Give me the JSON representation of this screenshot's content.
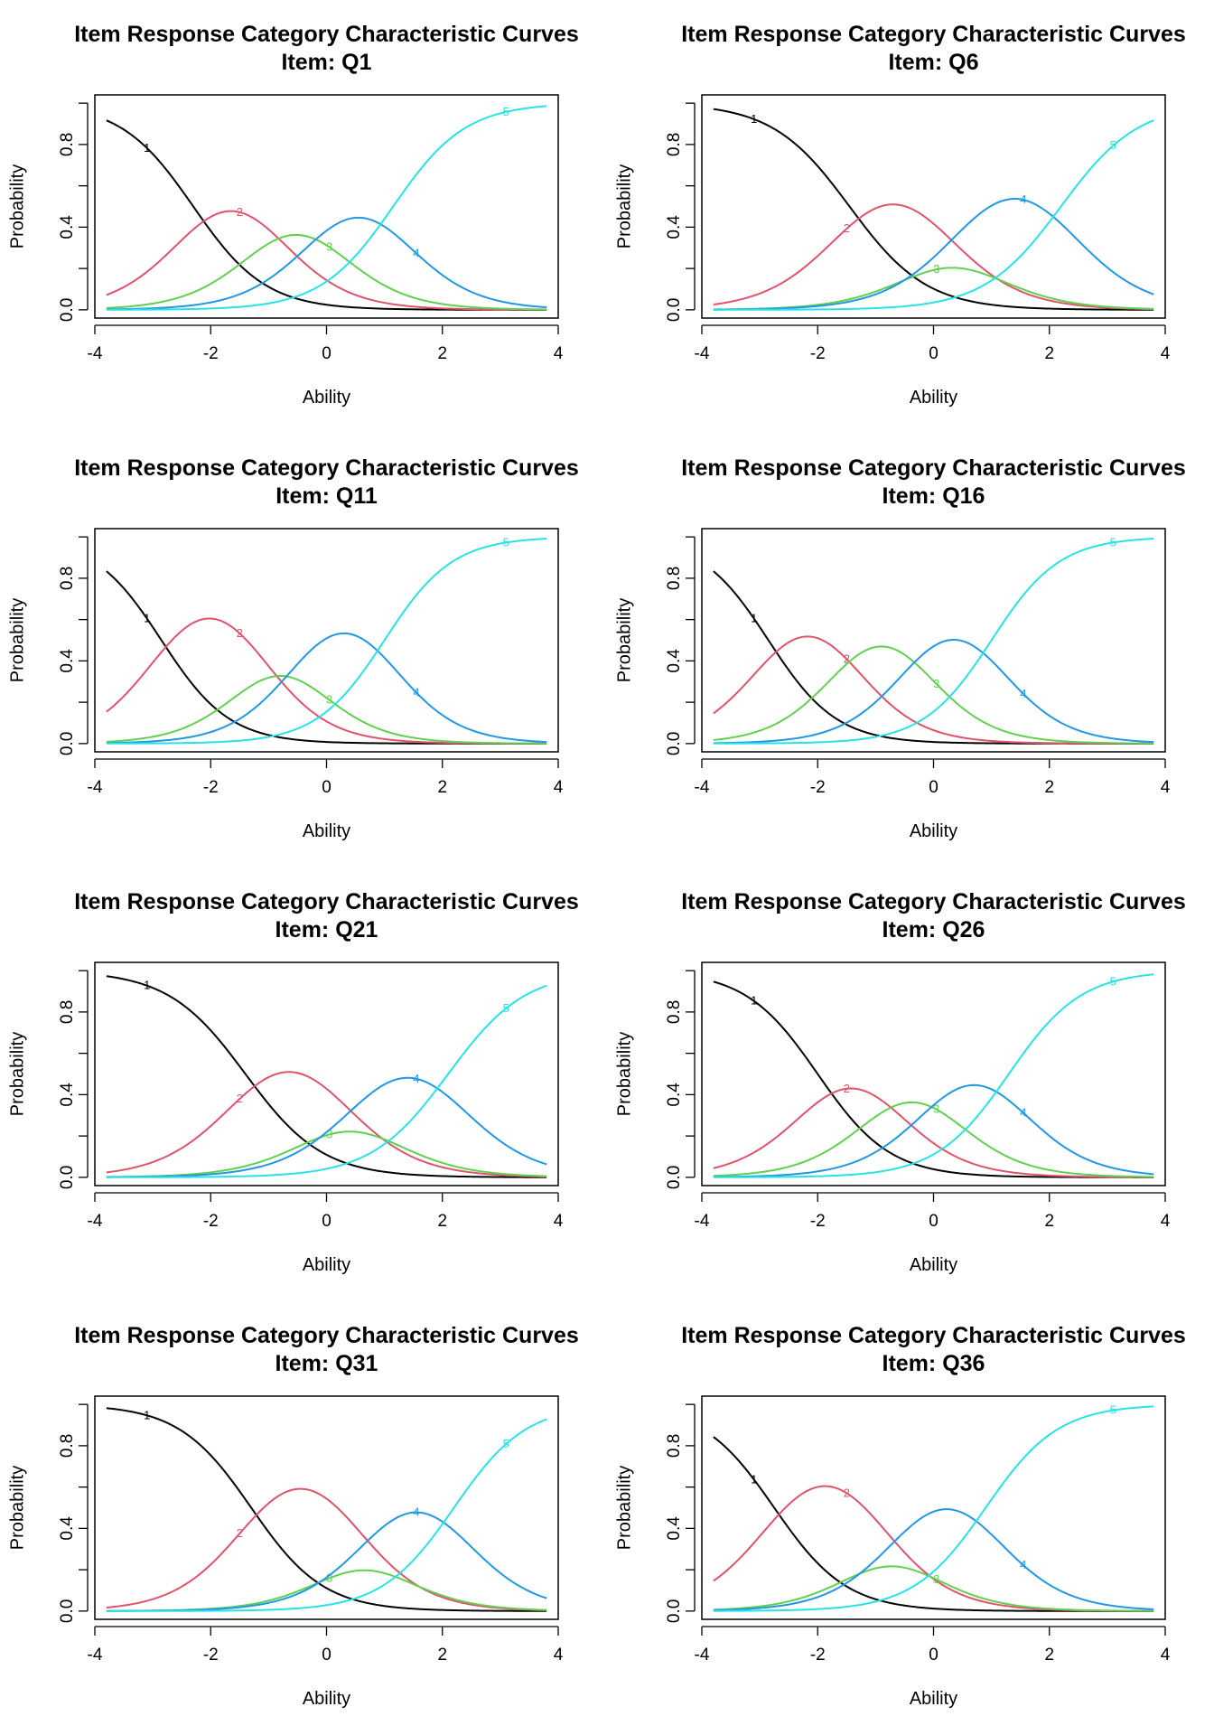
{
  "figure": {
    "title_line1": "Item Response Category Characteristic Curves",
    "item_prefix": "Item: ",
    "xlabel": "Ability",
    "ylabel": "Probability"
  },
  "chart_data": [
    {
      "type": "line",
      "title": "Item Response Category Characteristic Curves",
      "subtitle": "Item: Q1",
      "xlabel": "Ability",
      "ylabel": "Probability",
      "xlim": [
        -4,
        4
      ],
      "ylim": [
        0,
        1
      ],
      "x_ticks": [
        "-4",
        "-2",
        "0",
        "2",
        "4"
      ],
      "y_ticks": [
        "0.0",
        "0.4",
        "0.8"
      ],
      "grid": false,
      "legend": "none",
      "model": {
        "a": 1.6,
        "thresholds": [
          -2.3,
          -1.0,
          -0.05,
          1.15
        ]
      },
      "series": [
        {
          "name": "1",
          "color": "#000000",
          "label_x": -3.1
        },
        {
          "name": "2",
          "color": "#DF536B",
          "label_x": -1.5
        },
        {
          "name": "3",
          "color": "#61D04F",
          "label_x": 0.05
        },
        {
          "name": "4",
          "color": "#2297E6",
          "label_x": 1.55
        },
        {
          "name": "5",
          "color": "#28E2E5",
          "label_x": 3.1
        }
      ]
    },
    {
      "type": "line",
      "title": "Item Response Category Characteristic Curves",
      "subtitle": "Item: Q6",
      "xlabel": "Ability",
      "ylabel": "Probability",
      "xlim": [
        -4,
        4
      ],
      "ylim": [
        0,
        1
      ],
      "x_ticks": [
        "-4",
        "-2",
        "0",
        "2",
        "4"
      ],
      "y_ticks": [
        "0.0",
        "0.4",
        "0.8"
      ],
      "grid": false,
      "legend": "none",
      "model": {
        "a": 1.5,
        "thresholds": [
          -1.45,
          0.05,
          0.6,
          2.2
        ]
      },
      "series": [
        {
          "name": "1",
          "color": "#000000",
          "label_x": -3.1
        },
        {
          "name": "2",
          "color": "#DF536B",
          "label_x": -1.5
        },
        {
          "name": "3",
          "color": "#61D04F",
          "label_x": 0.05
        },
        {
          "name": "4",
          "color": "#2297E6",
          "label_x": 1.55
        },
        {
          "name": "5",
          "color": "#28E2E5",
          "label_x": 3.1
        }
      ]
    },
    {
      "type": "line",
      "title": "Item Response Category Characteristic Curves",
      "subtitle": "Item: Q11",
      "xlabel": "Ability",
      "ylabel": "Probability",
      "xlim": [
        -4,
        4
      ],
      "ylim": [
        0,
        1
      ],
      "x_ticks": [
        "-4",
        "-2",
        "0",
        "2",
        "4"
      ],
      "y_ticks": [
        "0.0",
        "0.4",
        "0.8"
      ],
      "grid": false,
      "legend": "none",
      "model": {
        "a": 1.7,
        "thresholds": [
          -2.85,
          -1.2,
          -0.4,
          1.0
        ]
      },
      "series": [
        {
          "name": "1",
          "color": "#000000",
          "label_x": -3.1
        },
        {
          "name": "2",
          "color": "#DF536B",
          "label_x": -1.5
        },
        {
          "name": "3",
          "color": "#61D04F",
          "label_x": 0.05
        },
        {
          "name": "4",
          "color": "#2297E6",
          "label_x": 1.55
        },
        {
          "name": "5",
          "color": "#28E2E5",
          "label_x": 3.1
        }
      ]
    },
    {
      "type": "line",
      "title": "Item Response Category Characteristic Curves",
      "subtitle": "Item: Q16",
      "xlabel": "Ability",
      "ylabel": "Probability",
      "xlim": [
        -4,
        4
      ],
      "ylim": [
        0,
        1
      ],
      "x_ticks": [
        "-4",
        "-2",
        "0",
        "2",
        "4"
      ],
      "y_ticks": [
        "0.0",
        "0.4",
        "0.8"
      ],
      "grid": false,
      "legend": "none",
      "model": {
        "a": 1.7,
        "thresholds": [
          -2.85,
          -1.5,
          -0.3,
          1.0
        ]
      },
      "series": [
        {
          "name": "1",
          "color": "#000000",
          "label_x": -3.1
        },
        {
          "name": "2",
          "color": "#DF536B",
          "label_x": -1.5
        },
        {
          "name": "3",
          "color": "#61D04F",
          "label_x": 0.05
        },
        {
          "name": "4",
          "color": "#2297E6",
          "label_x": 1.55
        },
        {
          "name": "5",
          "color": "#28E2E5",
          "label_x": 3.1
        }
      ]
    },
    {
      "type": "line",
      "title": "Item Response Category Characteristic Curves",
      "subtitle": "Item: Q21",
      "xlabel": "Ability",
      "ylabel": "Probability",
      "xlim": [
        -4,
        4
      ],
      "ylim": [
        0,
        1
      ],
      "x_ticks": [
        "-4",
        "-2",
        "0",
        "2",
        "4"
      ],
      "y_ticks": [
        "0.0",
        "0.4",
        "0.8"
      ],
      "grid": false,
      "legend": "none",
      "model": {
        "a": 1.5,
        "thresholds": [
          -1.4,
          0.1,
          0.7,
          2.1
        ]
      },
      "series": [
        {
          "name": "1",
          "color": "#000000",
          "label_x": -3.1
        },
        {
          "name": "2",
          "color": "#DF536B",
          "label_x": -1.5
        },
        {
          "name": "3",
          "color": "#61D04F",
          "label_x": 0.05
        },
        {
          "name": "4",
          "color": "#2297E6",
          "label_x": 1.55
        },
        {
          "name": "5",
          "color": "#28E2E5",
          "label_x": 3.1
        }
      ]
    },
    {
      "type": "line",
      "title": "Item Response Category Characteristic Curves",
      "subtitle": "Item: Q26",
      "xlabel": "Ability",
      "ylabel": "Probability",
      "xlim": [
        -4,
        4
      ],
      "ylim": [
        0,
        1
      ],
      "x_ticks": [
        "-4",
        "-2",
        "0",
        "2",
        "4"
      ],
      "y_ticks": [
        "0.0",
        "0.4",
        "0.8"
      ],
      "grid": false,
      "legend": "none",
      "model": {
        "a": 1.6,
        "thresholds": [
          -2.0,
          -0.85,
          0.1,
          1.3
        ]
      },
      "series": [
        {
          "name": "1",
          "color": "#000000",
          "label_x": -3.1
        },
        {
          "name": "2",
          "color": "#DF536B",
          "label_x": -1.5
        },
        {
          "name": "3",
          "color": "#61D04F",
          "label_x": 0.05
        },
        {
          "name": "4",
          "color": "#2297E6",
          "label_x": 1.55
        },
        {
          "name": "5",
          "color": "#28E2E5",
          "label_x": 3.1
        }
      ]
    },
    {
      "type": "line",
      "title": "Item Response Category Characteristic Curves",
      "subtitle": "Item: Q31",
      "xlabel": "Ability",
      "ylabel": "Probability",
      "xlim": [
        -4,
        4
      ],
      "ylim": [
        0,
        1
      ],
      "x_ticks": [
        "-4",
        "-2",
        "0",
        "2",
        "4"
      ],
      "y_ticks": [
        "0.0",
        "0.4",
        "0.8"
      ],
      "grid": false,
      "legend": "none",
      "model": {
        "a": 1.6,
        "thresholds": [
          -1.3,
          0.4,
          0.9,
          2.2
        ]
      },
      "series": [
        {
          "name": "1",
          "color": "#000000",
          "label_x": -3.1
        },
        {
          "name": "2",
          "color": "#DF536B",
          "label_x": -1.5
        },
        {
          "name": "3",
          "color": "#61D04F",
          "label_x": 0.05
        },
        {
          "name": "4",
          "color": "#2297E6",
          "label_x": 1.55
        },
        {
          "name": "5",
          "color": "#28E2E5",
          "label_x": 3.1
        }
      ]
    },
    {
      "type": "line",
      "title": "Item Response Category Characteristic Curves",
      "subtitle": "Item: Q36",
      "xlabel": "Ability",
      "ylabel": "Probability",
      "xlim": [
        -4,
        4
      ],
      "ylim": [
        0,
        1
      ],
      "x_ticks": [
        "-4",
        "-2",
        "0",
        "2",
        "4"
      ],
      "y_ticks": [
        "0.0",
        "0.4",
        "0.8"
      ],
      "grid": false,
      "legend": "none",
      "model": {
        "a": 1.6,
        "thresholds": [
          -2.75,
          -1.0,
          -0.45,
          0.9
        ]
      },
      "series": [
        {
          "name": "1",
          "color": "#000000",
          "label_x": -3.1
        },
        {
          "name": "2",
          "color": "#DF536B",
          "label_x": -1.5
        },
        {
          "name": "3",
          "color": "#61D04F",
          "label_x": 0.05
        },
        {
          "name": "4",
          "color": "#2297E6",
          "label_x": 1.55
        },
        {
          "name": "5",
          "color": "#28E2E5",
          "label_x": 3.1
        }
      ]
    }
  ]
}
